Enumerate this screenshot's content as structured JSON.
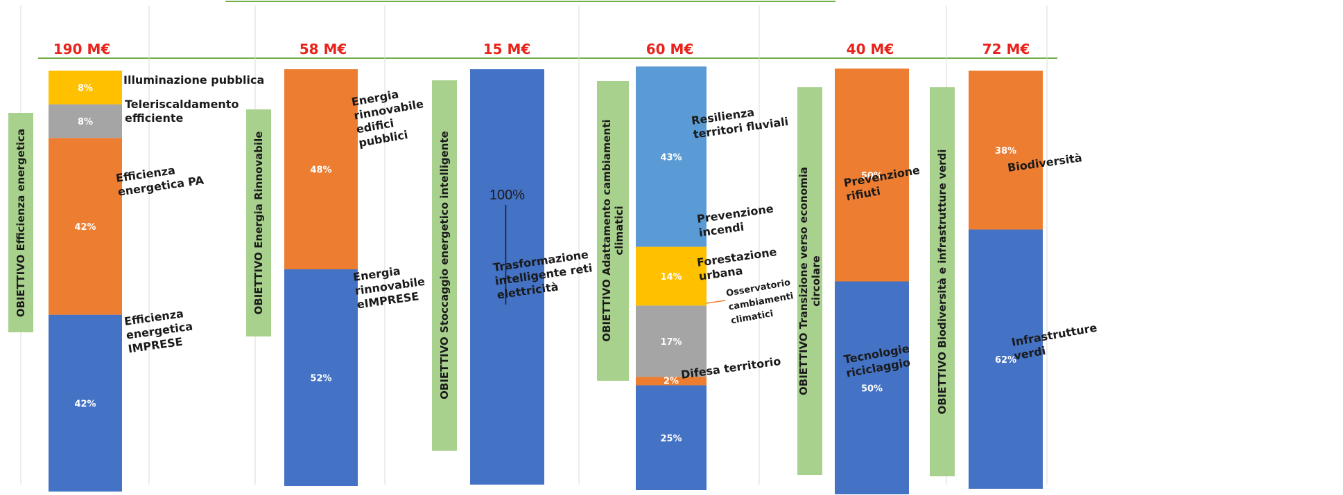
{
  "colors": {
    "blue": "#4472c4",
    "orange": "#ed7d31",
    "yellow": "#ffc000",
    "gray": "#a5a5a5",
    "lightblue": "#5b9bd5",
    "green_box": "#a9d18e",
    "total_red": "#e8231b",
    "line_green": "#70ad47"
  },
  "chart_data": {
    "type": "bar",
    "stacked": true,
    "normalized": true,
    "bars": [
      {
        "objective": "OBIETTIVO Efficienza energetica",
        "total": "190 M€",
        "segments": [
          {
            "value": 42,
            "pct_label": "42%",
            "label": "Efficienza energetica IMPRESE",
            "color": "blue"
          },
          {
            "value": 42,
            "pct_label": "42%",
            "label": "Efficienza energetica PA",
            "color": "orange"
          },
          {
            "value": 8,
            "pct_label": "8%",
            "label": "Teleriscaldamento efficiente",
            "color": "gray"
          },
          {
            "value": 8,
            "pct_label": "8%",
            "label": "Illuminazione pubblica",
            "color": "yellow"
          }
        ]
      },
      {
        "objective": "OBIETTIVO Energia Rinnovabile",
        "total": "58 M€",
        "segments": [
          {
            "value": 52,
            "pct_label": "52%",
            "label": "Energia rinnovabile eIMPRESE",
            "color": "blue"
          },
          {
            "value": 48,
            "pct_label": "48%",
            "label": "Energia rinnovabile edifici pubblici",
            "color": "orange"
          }
        ]
      },
      {
        "objective": "OBIETTIVO Stoccaggio energetico intelligente",
        "total": "15 M€",
        "segments": [
          {
            "value": 100,
            "pct_label": "100%",
            "label": "Trasformazione intelligente reti elettricità",
            "color": "blue"
          }
        ]
      },
      {
        "objective": "OBIETTIVO Adattamento cambiamenti climatici",
        "total": "60 M€",
        "segments": [
          {
            "value": 25,
            "pct_label": "25%",
            "label": "Difesa territorio",
            "color": "blue"
          },
          {
            "value": 2,
            "pct_label": "2%",
            "label": "Osservatorio cambiamenti climatici",
            "color": "orange"
          },
          {
            "value": 17,
            "pct_label": "17%",
            "label": "Forestazione urbana",
            "color": "gray"
          },
          {
            "value": 14,
            "pct_label": "14%",
            "label": "Prevenzione incendi",
            "color": "yellow"
          },
          {
            "value": 43,
            "pct_label": "43%",
            "label": "Resilienza territori fluviali",
            "color": "lightblue"
          }
        ]
      },
      {
        "objective": "OBIETTIVO Transizione verso economia circolare",
        "total": "40 M€",
        "segments": [
          {
            "value": 50,
            "pct_label": "50%",
            "label": "Tecnologie riciclaggio",
            "color": "blue"
          },
          {
            "value": 50,
            "pct_label": "50%",
            "label": "Prevenzione rifiuti",
            "color": "orange"
          }
        ]
      },
      {
        "objective": "OBIETTIVO Biodiversità e infrastrutture verdi",
        "total": "72 M€",
        "segments": [
          {
            "value": 62,
            "pct_label": "62%",
            "label": "Infrastrutture verdi",
            "color": "blue"
          },
          {
            "value": 38,
            "pct_label": "38%",
            "label": "Biodiversità",
            "color": "orange"
          }
        ]
      }
    ]
  }
}
